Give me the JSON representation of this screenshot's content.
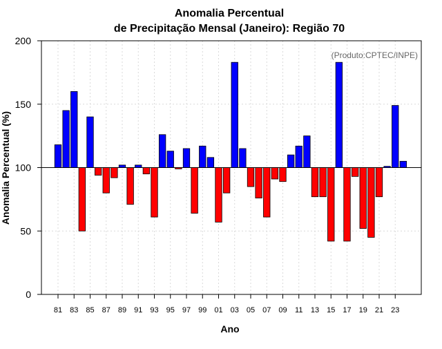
{
  "chart_data": {
    "type": "bar",
    "title": [
      "Anomalia Percentual",
      "de Precipitação Mensal (Janeiro): Região 70"
    ],
    "xlabel": "Ano",
    "ylabel": "Anomalia Percentual (%)",
    "watermark": "(Produto:CPTEC/INPE)",
    "baseline": 100,
    "ylim": [
      0,
      200
    ],
    "yticks": [
      0,
      50,
      100,
      150,
      200
    ],
    "grid": true,
    "colors": {
      "above": "#0000ff",
      "below": "#ff0000"
    },
    "years": [
      1981,
      1982,
      1983,
      1984,
      1985,
      1986,
      1987,
      1988,
      1989,
      1990,
      1991,
      1992,
      1993,
      1994,
      1995,
      1996,
      1997,
      1998,
      1999,
      2000,
      2001,
      2002,
      2003,
      2004,
      2005,
      2006,
      2007,
      2008,
      2009,
      2010,
      2011,
      2012,
      2013,
      2014,
      2015,
      2016,
      2017,
      2018,
      2019,
      2020,
      2021,
      2022,
      2023,
      2024
    ],
    "values": [
      118,
      145,
      160,
      50,
      140,
      94,
      80,
      92,
      102,
      71,
      102,
      95,
      61,
      126,
      113,
      99,
      115,
      64,
      117,
      108,
      57,
      80,
      183,
      115,
      85,
      76,
      61,
      91,
      89,
      110,
      117,
      125,
      77,
      77,
      42,
      183,
      42,
      93,
      52,
      45,
      77,
      101,
      149,
      105
    ],
    "xtick_labels": [
      "81",
      "83",
      "85",
      "87",
      "89",
      "91",
      "93",
      "95",
      "97",
      "99",
      "01",
      "03",
      "05",
      "07",
      "09",
      "11",
      "13",
      "15",
      "17",
      "19",
      "21",
      "23"
    ]
  }
}
